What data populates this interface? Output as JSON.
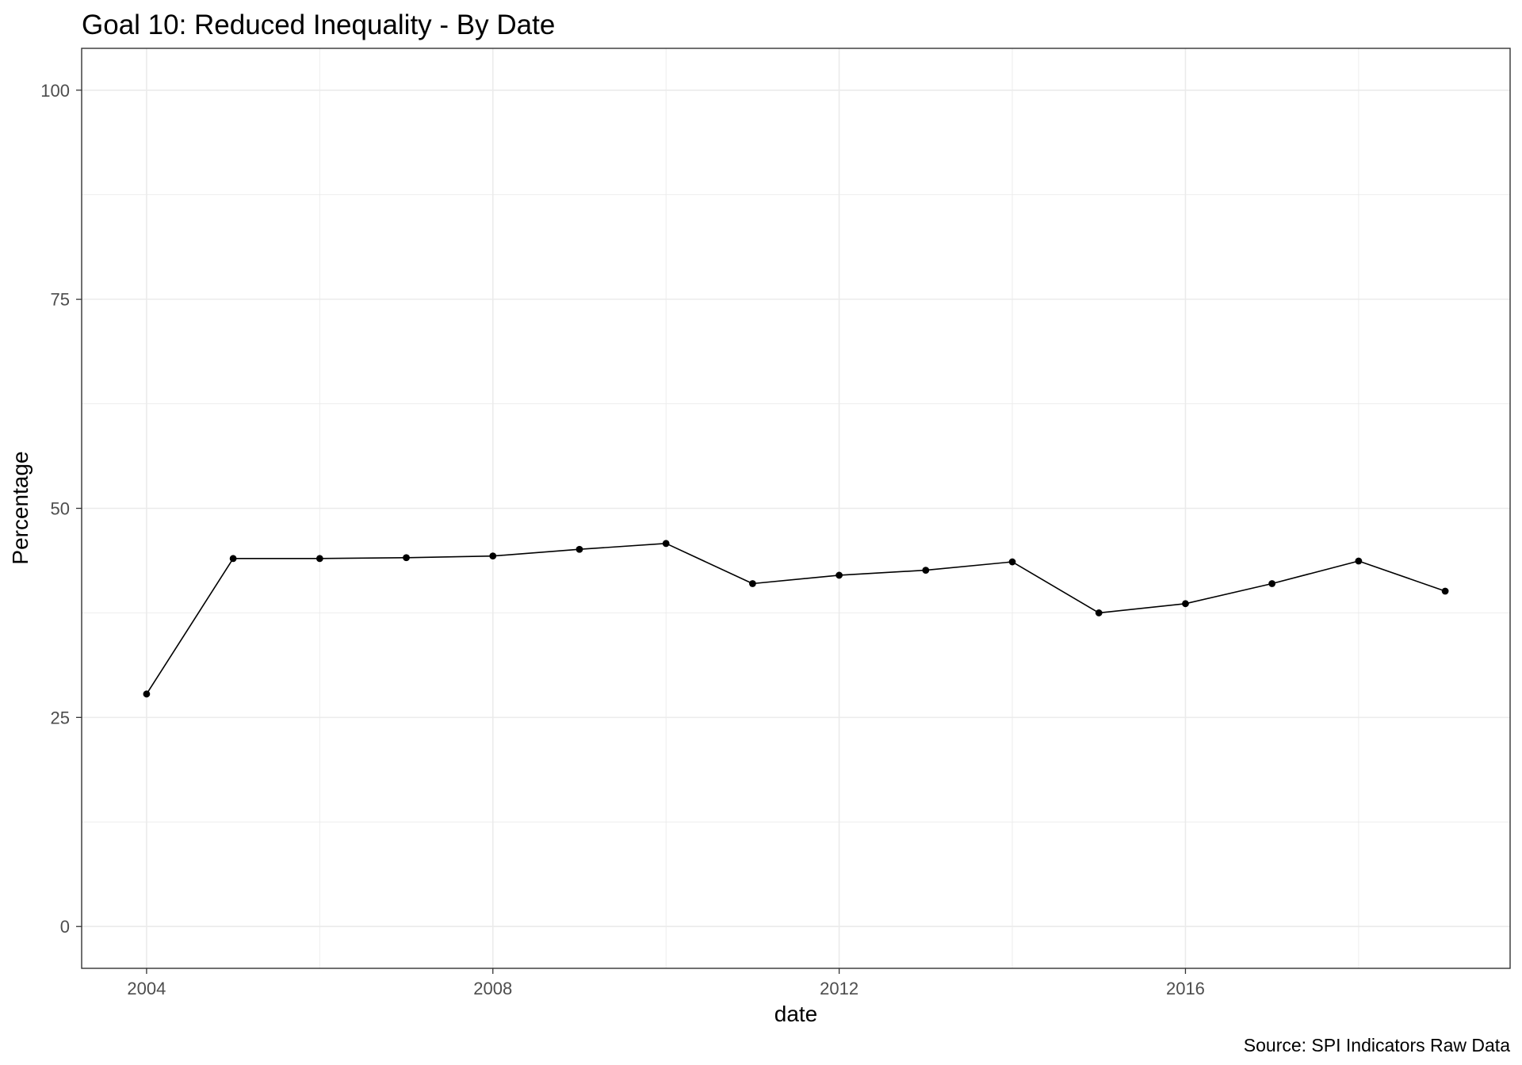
{
  "chart_data": {
    "type": "line",
    "title": "Goal 10: Reduced Inequality - By Date",
    "xlabel": "date",
    "ylabel": "Percentage",
    "caption": "Source: SPI Indicators Raw Data",
    "x": [
      2004,
      2005,
      2006,
      2007,
      2008,
      2009,
      2010,
      2011,
      2012,
      2013,
      2014,
      2015,
      2016,
      2017,
      2018,
      2019
    ],
    "y": [
      27.8,
      44.0,
      44.0,
      44.1,
      44.3,
      45.1,
      45.8,
      41.0,
      42.0,
      42.6,
      43.6,
      37.5,
      38.6,
      41.0,
      43.7,
      40.1
    ],
    "xlim": [
      2003.25,
      2019.75
    ],
    "ylim": [
      -5,
      105
    ],
    "xticks": [
      2004,
      2008,
      2012,
      2016
    ],
    "yticks": [
      0,
      25,
      50,
      75,
      100
    ],
    "grid": true,
    "legend": false,
    "markers": true,
    "colors": {
      "line": "#000000",
      "points": "#000000",
      "grid": "#EBEBEB",
      "panel_border": "#333333",
      "tick_labels": "#4D4D4D",
      "background": "#FFFFFF"
    }
  }
}
